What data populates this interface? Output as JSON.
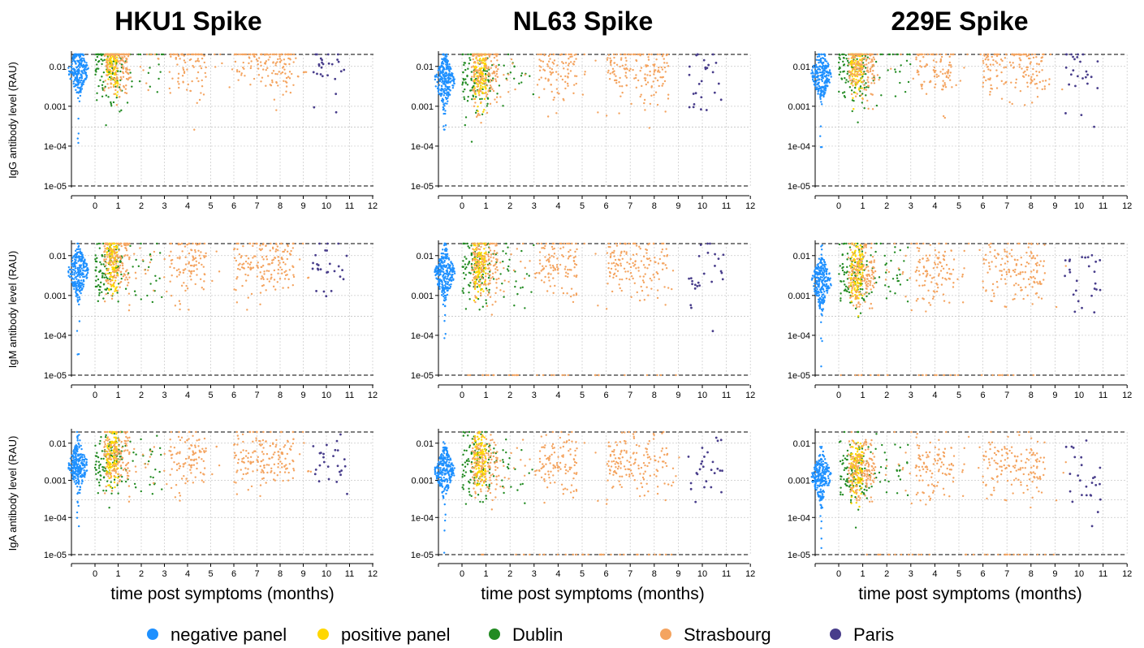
{
  "figure": {
    "column_titles": [
      "HKU1 Spike",
      "NL63 Spike",
      "229E Spike"
    ],
    "row_ylabels": [
      "IgG antibody level (RAU)",
      "IgM antibody level (RAU)",
      "IgA antibody level (RAU)"
    ],
    "x_axis_title": "time post symptoms (months)",
    "x_ticks": [
      "0",
      "1",
      "2",
      "3",
      "4",
      "5",
      "6",
      "7",
      "8",
      "9",
      "10",
      "11",
      "12"
    ],
    "y_ticks": [
      "0.01",
      "0.001",
      "1e-04",
      "1e-05"
    ],
    "legend": [
      {
        "label": "negative panel",
        "color": "#1e90ff"
      },
      {
        "label": "positive panel",
        "color": "#ffd700"
      },
      {
        "label": "Dublin",
        "color": "#228b22"
      },
      {
        "label": "Strasbourg",
        "color": "#f4a460"
      },
      {
        "label": "Paris",
        "color": "#483d8b"
      }
    ]
  },
  "chart_data": {
    "type": "scatter",
    "layout": "3x3 grid (rows = antibody isotype IgG/IgM/IgA, columns = antigen HKU1/NL63/229E)",
    "x": {
      "label": "time post symptoms (months)",
      "range": [
        0,
        12
      ]
    },
    "y": {
      "scale": "log10",
      "range": [
        1e-05,
        0.02
      ],
      "ticks": [
        0.01,
        0.001,
        0.0001,
        1e-05
      ]
    },
    "reference_lines": {
      "dashed": [
        1e-05,
        0.02
      ],
      "dotted": [
        0.0003
      ]
    },
    "grid": true,
    "legend_position": "bottom",
    "series": [
      {
        "name": "negative panel",
        "x_position": "left of 0 (beeswarm)",
        "median_log10": {
          "IgG": [
            -2.1,
            -2.35,
            -2.2
          ],
          "IgM": [
            -2.4,
            -2.45,
            -2.65
          ],
          "IgA": [
            -2.6,
            -2.75,
            -2.9
          ]
        }
      },
      {
        "name": "positive panel",
        "x_range": [
          0.5,
          1.0
        ]
      },
      {
        "name": "Dublin",
        "x_range": [
          0.0,
          3.0
        ]
      },
      {
        "name": "Strasbourg",
        "x_range": [
          0.3,
          9.5
        ]
      },
      {
        "name": "Paris",
        "x_range": [
          9.3,
          11.0
        ]
      }
    ]
  }
}
